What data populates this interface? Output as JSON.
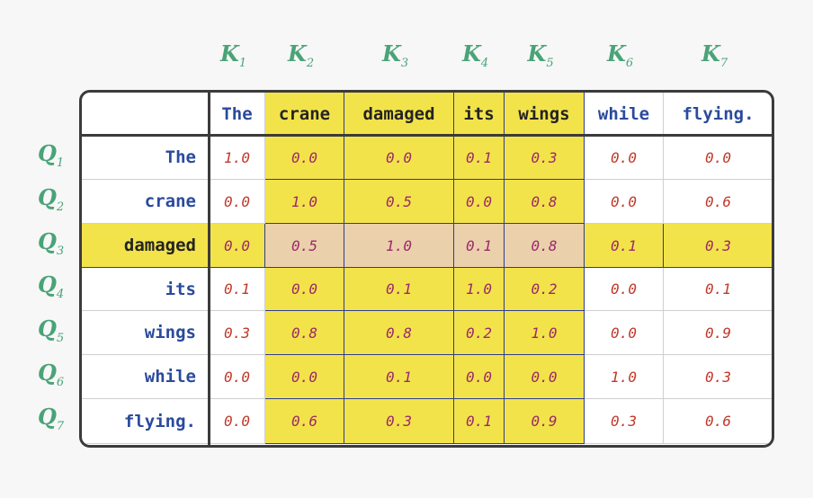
{
  "keys": [
    {
      "letter": "K",
      "sub": "1"
    },
    {
      "letter": "K",
      "sub": "2"
    },
    {
      "letter": "K",
      "sub": "3"
    },
    {
      "letter": "K",
      "sub": "4"
    },
    {
      "letter": "K",
      "sub": "5"
    },
    {
      "letter": "K",
      "sub": "6"
    },
    {
      "letter": "K",
      "sub": "7"
    }
  ],
  "queries": [
    {
      "letter": "Q",
      "sub": "1"
    },
    {
      "letter": "Q",
      "sub": "2"
    },
    {
      "letter": "Q",
      "sub": "3"
    },
    {
      "letter": "Q",
      "sub": "4"
    },
    {
      "letter": "Q",
      "sub": "5"
    },
    {
      "letter": "Q",
      "sub": "6"
    },
    {
      "letter": "Q",
      "sub": "7"
    }
  ],
  "tokens": [
    "The",
    "crane",
    "damaged",
    "its",
    "wings",
    "while",
    "flying."
  ],
  "highlight": {
    "query_row": 2,
    "key_columns": [
      1,
      2,
      3,
      4
    ],
    "yellow": "#f3e34a",
    "overlap": "#ebd0ac"
  },
  "colors": {
    "label_green": "#4aa378",
    "token_blue": "#2a4a9c",
    "value_red": "#c0392b"
  },
  "matrix": [
    [
      "1.0",
      "0.0",
      "0.0",
      "0.1",
      "0.3",
      "0.0",
      "0.0"
    ],
    [
      "0.0",
      "1.0",
      "0.5",
      "0.0",
      "0.8",
      "0.0",
      "0.6"
    ],
    [
      "0.0",
      "0.5",
      "1.0",
      "0.1",
      "0.8",
      "0.1",
      "0.3"
    ],
    [
      "0.1",
      "0.0",
      "0.1",
      "1.0",
      "0.2",
      "0.0",
      "0.1"
    ],
    [
      "0.3",
      "0.8",
      "0.8",
      "0.2",
      "1.0",
      "0.0",
      "0.9"
    ],
    [
      "0.0",
      "0.0",
      "0.1",
      "0.0",
      "0.0",
      "1.0",
      "0.3"
    ],
    [
      "0.0",
      "0.6",
      "0.3",
      "0.1",
      "0.9",
      "0.3",
      "0.6"
    ]
  ]
}
